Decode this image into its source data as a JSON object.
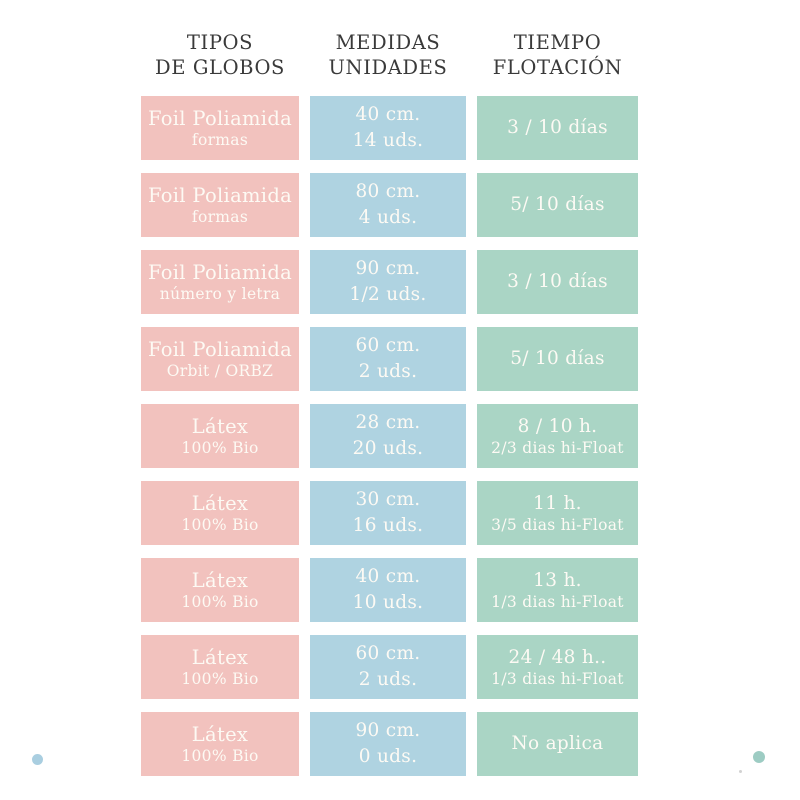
{
  "chart_data": {
    "type": "table",
    "columns": [
      {
        "id": "tipos",
        "line1": "TIPOS",
        "line2": "DE GLOBOS",
        "color": "#f2c2be"
      },
      {
        "id": "medidas",
        "line1": "MEDIDAS",
        "line2": "UNIDADES",
        "color": "#afd3e1"
      },
      {
        "id": "tiempo",
        "line1": "TIEMPO",
        "line2": "FLOTACIÓN",
        "color": "#aad5c5"
      }
    ],
    "rows": [
      {
        "tipo": {
          "line1": "Foil Poliamida",
          "line2": "formas"
        },
        "medidas": {
          "line1": "40 cm.",
          "line2": "14 uds."
        },
        "tiempo": {
          "line1": "3 / 10 días",
          "line2": ""
        }
      },
      {
        "tipo": {
          "line1": "Foil Poliamida",
          "line2": "formas"
        },
        "medidas": {
          "line1": "80 cm.",
          "line2": "4 uds."
        },
        "tiempo": {
          "line1": "5/ 10 días",
          "line2": ""
        }
      },
      {
        "tipo": {
          "line1": "Foil Poliamida",
          "line2": "número y letra"
        },
        "medidas": {
          "line1": "90 cm.",
          "line2": "1/2 uds."
        },
        "tiempo": {
          "line1": "3 / 10 días",
          "line2": ""
        }
      },
      {
        "tipo": {
          "line1": "Foil Poliamida",
          "line2": "Orbit / ORBZ"
        },
        "medidas": {
          "line1": "60 cm.",
          "line2": "2 uds."
        },
        "tiempo": {
          "line1": "5/ 10 días",
          "line2": ""
        }
      },
      {
        "tipo": {
          "line1": "Látex",
          "line2": "100% Bio"
        },
        "medidas": {
          "line1": "28 cm.",
          "line2": "20 uds."
        },
        "tiempo": {
          "line1": "8 / 10 h.",
          "line2": "2/3 dias hi-Float"
        }
      },
      {
        "tipo": {
          "line1": "Látex",
          "line2": "100% Bio"
        },
        "medidas": {
          "line1": "30 cm.",
          "line2": "16 uds."
        },
        "tiempo": {
          "line1": "11 h.",
          "line2": "3/5 dias hi-Float"
        }
      },
      {
        "tipo": {
          "line1": "Látex",
          "line2": "100% Bio"
        },
        "medidas": {
          "line1": "40 cm.",
          "line2": "10 uds."
        },
        "tiempo": {
          "line1": "13 h.",
          "line2": "1/3 dias hi-Float"
        }
      },
      {
        "tipo": {
          "line1": "Látex",
          "line2": "100% Bio"
        },
        "medidas": {
          "line1": "60 cm.",
          "line2": "2 uds."
        },
        "tiempo": {
          "line1": "24 / 48 h..",
          "line2": "1/3 dias hi-Float"
        }
      },
      {
        "tipo": {
          "line1": "Látex",
          "line2": "100% Bio"
        },
        "medidas": {
          "line1": "90 cm.",
          "line2": "0 uds."
        },
        "tiempo": {
          "line1": "No aplica",
          "line2": ""
        }
      }
    ]
  },
  "colors": {
    "background": "#ffffff",
    "tipos_cell": "#f2c2be",
    "medidas_cell": "#afd3e1",
    "tiempo_cell": "#aad5c5",
    "cell_text": "#fdfaf4",
    "header_text": "#3a3a3a",
    "dot_left": "#a9cee0",
    "dot_right": "#9dccc3"
  },
  "decorations": {
    "dots": [
      {
        "name": "blue-dot-bottom-left",
        "color": "#a9cee0"
      },
      {
        "name": "teal-dot-bottom-right",
        "color": "#9dccc3"
      }
    ]
  }
}
